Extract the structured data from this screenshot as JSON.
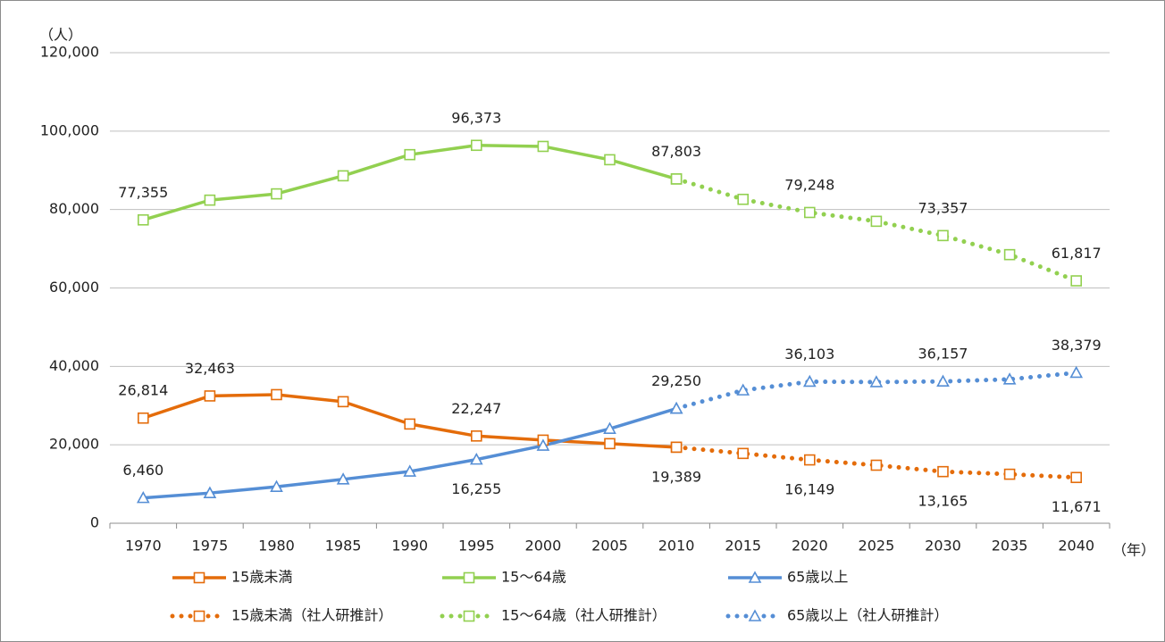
{
  "chart_data": {
    "type": "line",
    "y_unit": "（人）",
    "x_unit": "（年）",
    "categories": [
      "1970",
      "1975",
      "1980",
      "1985",
      "1990",
      "1995",
      "2000",
      "2005",
      "2010",
      "2015",
      "2020",
      "2025",
      "2030",
      "2035",
      "2040"
    ],
    "ylim": [
      0,
      120000
    ],
    "yticks": [
      0,
      {
        "value": 20000,
        "label": "20,000"
      },
      {
        "value": 40000,
        "label": "40,000"
      },
      {
        "value": 60000,
        "label": "60,000"
      },
      {
        "value": 80000,
        "label": "80,000"
      },
      {
        "value": 100000,
        "label": "100,000"
      },
      {
        "value": 120000,
        "label": "120,000"
      }
    ],
    "grid": true,
    "series": [
      {
        "name": "15歳未満",
        "color": "#e46c0a",
        "line_style": "solid",
        "marker": "square",
        "values": [
          26814,
          32463,
          32800,
          31000,
          25300,
          22247,
          21200,
          20300,
          19389,
          null,
          null,
          null,
          null,
          null,
          null
        ],
        "value_labels": [
          "26,814",
          "32,463",
          null,
          null,
          null,
          "22,247",
          null,
          null,
          "19,389",
          null,
          null,
          null,
          null,
          null,
          null
        ]
      },
      {
        "name": "15〜64歳",
        "color": "#92d050",
        "line_style": "solid",
        "marker": "square",
        "values": [
          77355,
          82400,
          84000,
          88600,
          94000,
          96373,
          96100,
          92700,
          87803,
          null,
          null,
          null,
          null,
          null,
          null
        ],
        "value_labels": [
          "77,355",
          null,
          null,
          null,
          null,
          "96,373",
          null,
          null,
          "87,803",
          null,
          null,
          null,
          null,
          null,
          null
        ]
      },
      {
        "name": "65歳以上",
        "color": "#558ed5",
        "line_style": "solid",
        "marker": "triangle",
        "values": [
          6460,
          7700,
          9300,
          11200,
          13200,
          16255,
          19800,
          24100,
          29250,
          null,
          null,
          null,
          null,
          null,
          null
        ],
        "value_labels": [
          "6,460",
          null,
          null,
          null,
          null,
          "16,255",
          null,
          null,
          "29,250",
          null,
          null,
          null,
          null,
          null,
          null
        ]
      },
      {
        "name": "15歳未満（社人研推計）",
        "color": "#e46c0a",
        "line_style": "dotted",
        "marker": "square",
        "values": [
          null,
          null,
          null,
          null,
          null,
          null,
          null,
          null,
          19389,
          17800,
          16149,
          14800,
          13165,
          12500,
          11671
        ],
        "value_labels": [
          null,
          null,
          null,
          null,
          null,
          null,
          null,
          null,
          null,
          null,
          "16,149",
          null,
          "13,165",
          null,
          "11,671"
        ]
      },
      {
        "name": "15〜64歳（社人研推計）",
        "color": "#92d050",
        "line_style": "dotted",
        "marker": "square",
        "values": [
          null,
          null,
          null,
          null,
          null,
          null,
          null,
          null,
          87803,
          82600,
          79248,
          77000,
          73357,
          68500,
          61817
        ],
        "value_labels": [
          null,
          null,
          null,
          null,
          null,
          null,
          null,
          null,
          null,
          null,
          "79,248",
          null,
          "73,357",
          null,
          "61,817"
        ]
      },
      {
        "name": "65歳以上（社人研推計）",
        "color": "#558ed5",
        "line_style": "dotted",
        "marker": "triangle",
        "values": [
          null,
          null,
          null,
          null,
          null,
          null,
          null,
          null,
          29250,
          33900,
          36103,
          36000,
          36157,
          36700,
          38379
        ],
        "value_labels": [
          null,
          null,
          null,
          null,
          null,
          null,
          null,
          null,
          null,
          null,
          "36,103",
          null,
          "36,157",
          null,
          "38,379"
        ]
      }
    ]
  }
}
